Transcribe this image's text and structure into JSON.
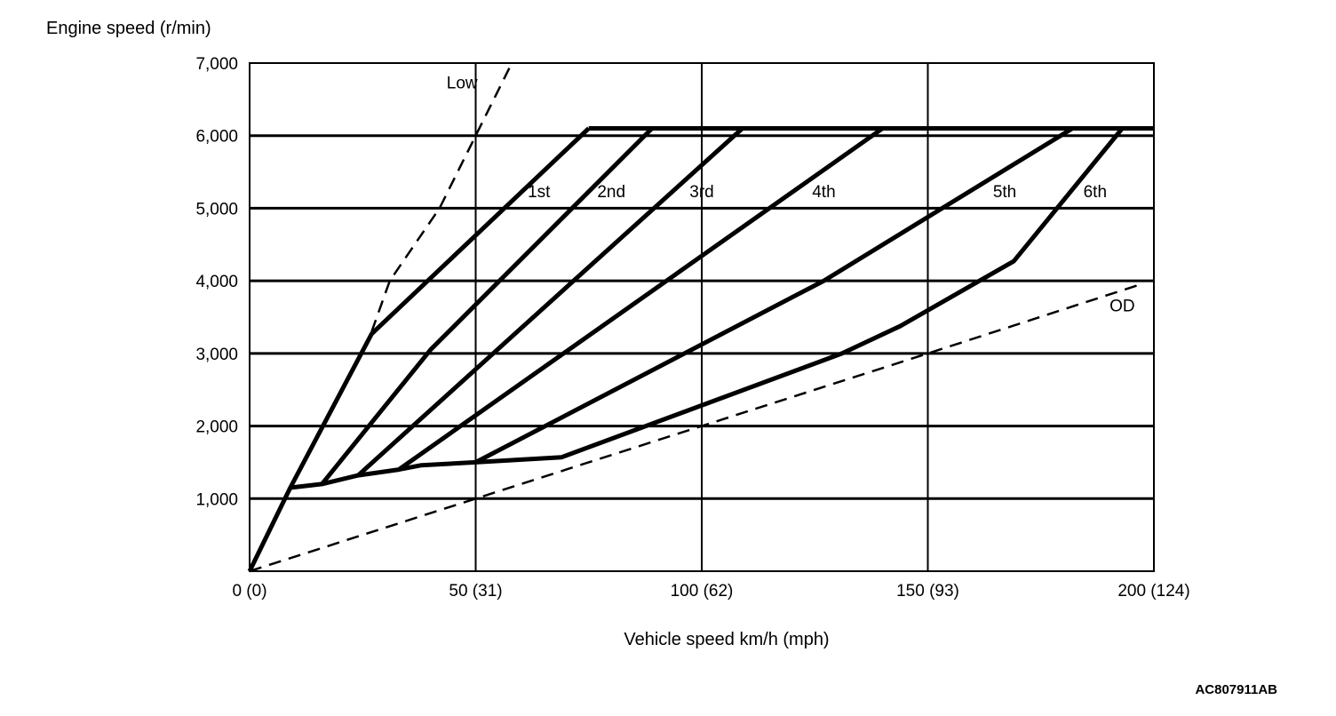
{
  "chart_data": {
    "type": "line",
    "title": "",
    "ylabel": "Engine speed (r/min)",
    "xlabel": "Vehicle speed  km/h (mph)",
    "xlim": [
      0,
      200
    ],
    "ylim": [
      0,
      7000
    ],
    "grid": true,
    "x_ticks": [
      {
        "value": 0,
        "label": "0 (0)"
      },
      {
        "value": 50,
        "label": "50 (31)"
      },
      {
        "value": 100,
        "label": "100 (62)"
      },
      {
        "value": 150,
        "label": "150 (93)"
      },
      {
        "value": 200,
        "label": "200 (124)"
      }
    ],
    "y_ticks": [
      {
        "value": 1000,
        "label": "1,000"
      },
      {
        "value": 2000,
        "label": "2,000"
      },
      {
        "value": 3000,
        "label": "3,000"
      },
      {
        "value": 4000,
        "label": "4,000"
      },
      {
        "value": 5000,
        "label": "5,000"
      },
      {
        "value": 6000,
        "label": "6,000"
      },
      {
        "value": 7000,
        "label": "7,000"
      }
    ],
    "series": [
      {
        "name": "Low",
        "style": "dashed",
        "label_at": [
          47,
          6650
        ],
        "points": [
          [
            27,
            3300
          ],
          [
            31,
            4000
          ],
          [
            42,
            5000
          ],
          [
            58,
            7000
          ]
        ]
      },
      {
        "name": "OD",
        "style": "dashed",
        "label_at": [
          193,
          3580
        ],
        "points": [
          [
            0,
            0
          ],
          [
            50,
            1000
          ],
          [
            100,
            2000
          ],
          [
            150,
            3000
          ],
          [
            197,
            3950
          ]
        ]
      },
      {
        "name": "1st",
        "style": "solid",
        "label_at": [
          64,
          5150
        ],
        "points": [
          [
            0,
            0
          ],
          [
            9,
            1150
          ],
          [
            27,
            3270
          ],
          [
            75,
            6100
          ]
        ]
      },
      {
        "name": "2nd",
        "style": "solid",
        "label_at": [
          80,
          5150
        ],
        "points": [
          [
            9,
            1150
          ],
          [
            16,
            1200
          ],
          [
            40,
            3050
          ],
          [
            89,
            6100
          ]
        ]
      },
      {
        "name": "3rd",
        "style": "solid",
        "label_at": [
          100,
          5150
        ],
        "points": [
          [
            16,
            1200
          ],
          [
            24,
            1320
          ],
          [
            109,
            6100
          ]
        ]
      },
      {
        "name": "4th",
        "style": "solid",
        "label_at": [
          127,
          5150
        ],
        "points": [
          [
            24,
            1320
          ],
          [
            33,
            1400
          ],
          [
            140,
            6100
          ]
        ]
      },
      {
        "name": "5th",
        "style": "solid",
        "label_at": [
          167,
          5150
        ],
        "points": [
          [
            33,
            1400
          ],
          [
            38,
            1460
          ],
          [
            50,
            1500
          ],
          [
            127,
            4000
          ],
          [
            182,
            6100
          ]
        ]
      },
      {
        "name": "6th",
        "style": "solid",
        "label_at": [
          187,
          5150
        ],
        "points": [
          [
            50,
            1500
          ],
          [
            69,
            1570
          ],
          [
            131,
            3000
          ],
          [
            144,
            3380
          ],
          [
            169,
            4270
          ],
          [
            193,
            6100
          ]
        ]
      }
    ],
    "rev_limit": {
      "value": 6100,
      "x_start": 75,
      "x_end": 200
    }
  },
  "figure_code": "AC807911AB"
}
